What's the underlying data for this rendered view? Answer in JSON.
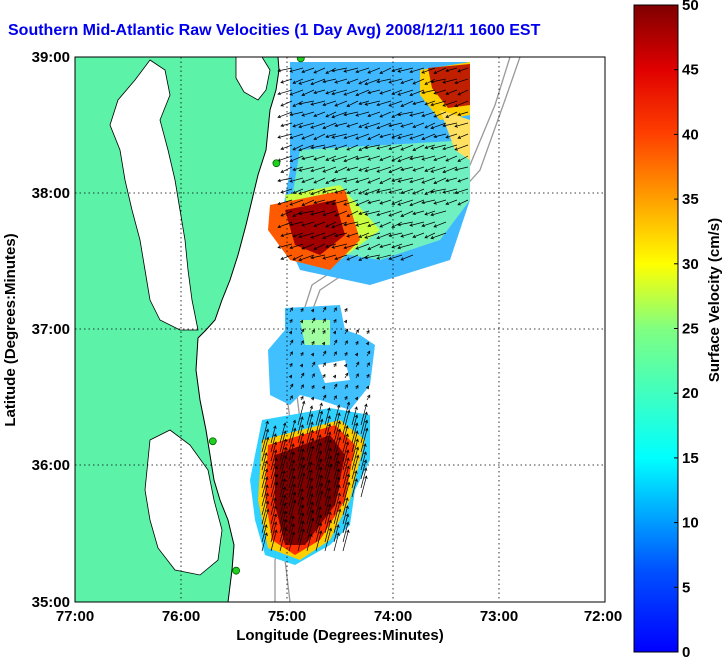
{
  "title": "Southern Mid-Atlantic Raw Velocities (1 Day Avg) 2008/12/11 1600 EST",
  "map": {
    "xlabel": "Longitude (Degrees:Minutes)",
    "ylabel": "Latitude (Degrees:Minutes)",
    "x_ticks": [
      "77:00",
      "76:00",
      "75:00",
      "74:00",
      "73:00",
      "72:00"
    ],
    "y_ticks": [
      "39:00",
      "38:00",
      "37:00",
      "36:00",
      "35:00"
    ],
    "lon_range": [
      -77,
      -72
    ],
    "lat_range": [
      35,
      39
    ],
    "land_color": "#5cf2a8",
    "grid": "dotted"
  },
  "colorbar": {
    "label": "Surface Velocity (cm/s)",
    "ticks": [
      "0",
      "5",
      "10",
      "15",
      "20",
      "25",
      "30",
      "35",
      "40",
      "45",
      "50"
    ],
    "range": [
      0,
      50
    ],
    "colormap": "jet"
  },
  "stations": [
    {
      "lon": -74.87,
      "lat": 38.99
    },
    {
      "lon": -75.1,
      "lat": 38.22
    },
    {
      "lon": -75.7,
      "lat": 36.18
    },
    {
      "lon": -75.48,
      "lat": 35.23
    }
  ]
}
